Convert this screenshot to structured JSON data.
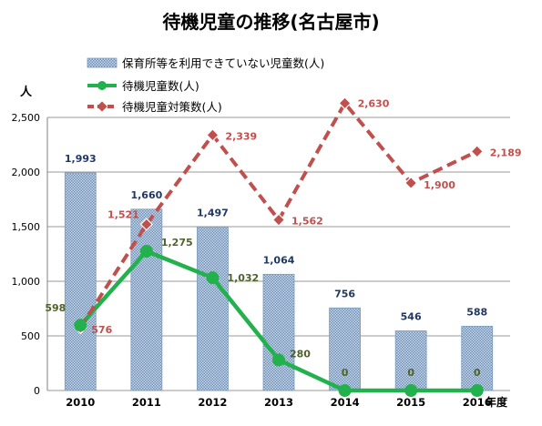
{
  "chart_data": {
    "type": "bar+line",
    "title": "待機児童の推移(名古屋市)",
    "ylabel": "人",
    "xlabel": "年度",
    "ylim": [
      0,
      2500
    ],
    "ytick_labels": [
      "0",
      "500",
      "1,000",
      "1,500",
      "2,000",
      "2,500"
    ],
    "grid": true,
    "legend_position": "top-left",
    "categories": [
      "2010",
      "2011",
      "2012",
      "2013",
      "2014",
      "2015",
      "2016"
    ],
    "series": [
      {
        "name": "保育所等を利用できていない児童数(人)",
        "kind": "bar",
        "values": [
          1993,
          1660,
          1497,
          1064,
          756,
          546,
          588
        ],
        "labels": [
          "1,993",
          "1,660",
          "1,497",
          "1,064",
          "756",
          "546",
          "588"
        ],
        "color": "#5b7fa6",
        "label_color": "#1f3864"
      },
      {
        "name": "待機児童数(人)",
        "kind": "line",
        "values": [
          598,
          1275,
          1032,
          280,
          0,
          0,
          0
        ],
        "labels": [
          "598",
          "1,275",
          "1,032",
          "280",
          "0",
          "0",
          "0"
        ],
        "color": "#22b14c",
        "label_color": "#4f6228"
      },
      {
        "name": "待機児童対策数(人)",
        "kind": "line-dashed",
        "values": [
          576,
          1521,
          2339,
          1562,
          2630,
          1900,
          2189
        ],
        "labels": [
          "576",
          "1,521",
          "2,339",
          "1,562",
          "2,630",
          "1,900",
          "2,189"
        ],
        "color": "#c0504d",
        "label_color": "#c0504d"
      }
    ]
  }
}
